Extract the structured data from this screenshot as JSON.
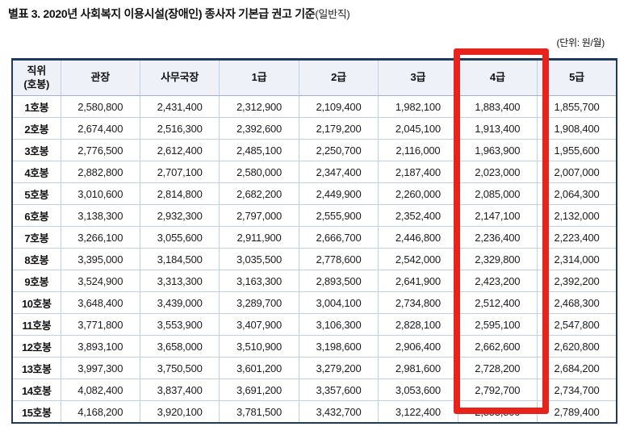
{
  "header": {
    "title_main": "별표 3. 2020년 사회복지 이용시설(장애인) 종사자 기본급 권고 기준",
    "title_suffix": "(일반직)",
    "unit_note": "(단위: 원/월)"
  },
  "table": {
    "columns": [
      "직위\n(호봉)",
      "관장",
      "사무국장",
      "1급",
      "2급",
      "3급",
      "4급",
      "5급"
    ],
    "highlighted_column": "4급",
    "rows": [
      {
        "label": "1호봉",
        "values": [
          "2,580,800",
          "2,431,400",
          "2,312,900",
          "2,109,400",
          "1,982,100",
          "1,883,400",
          "1,855,700"
        ]
      },
      {
        "label": "2호봉",
        "values": [
          "2,674,400",
          "2,516,300",
          "2,392,600",
          "2,179,200",
          "2,045,100",
          "1,913,400",
          "1,908,400"
        ]
      },
      {
        "label": "3호봉",
        "values": [
          "2,776,500",
          "2,612,400",
          "2,485,100",
          "2,250,700",
          "2,116,000",
          "1,963,900",
          "1,955,600"
        ]
      },
      {
        "label": "4호봉",
        "values": [
          "2,882,800",
          "2,707,100",
          "2,580,000",
          "2,347,400",
          "2,187,400",
          "2,023,000",
          "2,007,000"
        ]
      },
      {
        "label": "5호봉",
        "values": [
          "3,010,600",
          "2,814,800",
          "2,682,200",
          "2,449,900",
          "2,260,000",
          "2,085,000",
          "2,064,300"
        ]
      },
      {
        "label": "6호봉",
        "values": [
          "3,138,300",
          "2,932,300",
          "2,797,000",
          "2,555,900",
          "2,352,400",
          "2,147,100",
          "2,132,000"
        ]
      },
      {
        "label": "7호봉",
        "values": [
          "3,266,100",
          "3,055,600",
          "2,911,900",
          "2,666,700",
          "2,446,800",
          "2,236,400",
          "2,223,400"
        ]
      },
      {
        "label": "8호봉",
        "values": [
          "3,395,000",
          "3,184,500",
          "3,035,500",
          "2,778,600",
          "2,542,000",
          "2,329,800",
          "2,314,000"
        ]
      },
      {
        "label": "9호봉",
        "values": [
          "3,524,900",
          "3,313,300",
          "3,163,300",
          "2,893,500",
          "2,641,900",
          "2,423,200",
          "2,392,200"
        ]
      },
      {
        "label": "10호봉",
        "values": [
          "3,648,400",
          "3,439,000",
          "3,289,700",
          "3,004,100",
          "2,734,800",
          "2,512,400",
          "2,468,300"
        ]
      },
      {
        "label": "11호봉",
        "values": [
          "3,771,800",
          "3,553,900",
          "3,407,900",
          "3,106,300",
          "2,828,100",
          "2,595,100",
          "2,547,800"
        ]
      },
      {
        "label": "12호봉",
        "values": [
          "3,893,100",
          "3,658,000",
          "3,510,900",
          "3,198,600",
          "2,906,400",
          "2,662,600",
          "2,620,800"
        ]
      },
      {
        "label": "13호봉",
        "values": [
          "3,997,300",
          "3,750,500",
          "3,601,200",
          "3,279,200",
          "2,981,600",
          "2,728,200",
          "2,684,200"
        ]
      },
      {
        "label": "14호봉",
        "values": [
          "4,082,400",
          "3,837,400",
          "3,691,200",
          "3,357,600",
          "3,053,600",
          "2,792,700",
          "2,734,700"
        ]
      },
      {
        "label": "15호봉",
        "values": [
          "4,168,200",
          "3,920,100",
          "3,781,500",
          "3,432,700",
          "3,122,400",
          "2,853,800",
          "2,789,400"
        ]
      }
    ]
  },
  "colors": {
    "table_border": "#1f3b5f",
    "grid_line": "#c3cfe2",
    "header_bg": "#eef1f8",
    "highlight_red": "#e8231b",
    "text": "#1a1a1a"
  }
}
